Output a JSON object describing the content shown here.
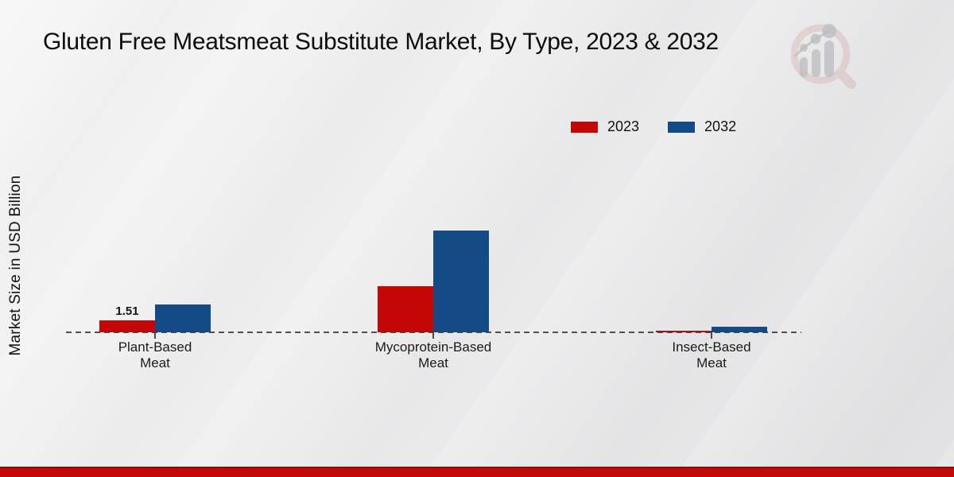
{
  "page": {
    "title": "Gluten Free Meatsmeat Substitute Market, By Type, 2023 & 2032"
  },
  "colors": {
    "series_2023": "#c40606",
    "series_2032": "#134b87",
    "footer_band": "#c50808",
    "axis_line": "#3a3a3a"
  },
  "logo": {
    "name": "magnifier-bar-chart-watermark"
  },
  "chart_data": {
    "type": "bar",
    "title": "Gluten Free Meatsmeat Substitute Market, By Type, 2023 & 2032",
    "xlabel": "",
    "ylabel": "Market Size in USD Billion",
    "categories": [
      "Plant-Based Meat",
      "Mycoprotein-Based Meat",
      "Insect-Based Meat"
    ],
    "category_lines": [
      [
        "Plant-Based",
        "Meat"
      ],
      [
        "Mycoprotein-Based",
        "Meat"
      ],
      [
        "Insect-Based",
        "Meat"
      ]
    ],
    "series": [
      {
        "name": "2023",
        "color": "#c40606",
        "values": [
          1.51,
          5.8,
          0.2
        ],
        "labels": [
          "1.51",
          null,
          null
        ]
      },
      {
        "name": "2032",
        "color": "#134b87",
        "values": [
          3.5,
          12.8,
          0.7
        ],
        "labels": [
          null,
          null,
          null
        ]
      }
    ],
    "ylim": [
      0,
      14
    ],
    "grid": false,
    "y_axis_ticks_visible": false,
    "baseline_style": "dashed",
    "legend_position": "top-right",
    "unit": "USD Billion"
  }
}
